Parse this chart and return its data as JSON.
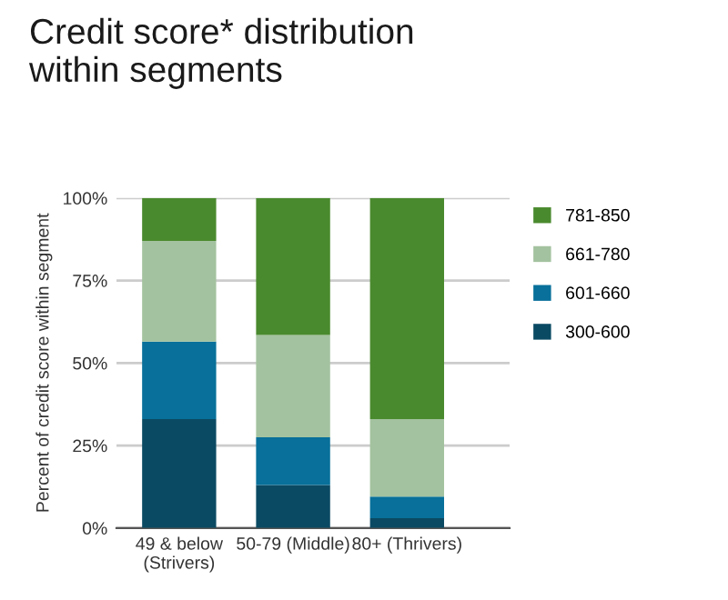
{
  "chart_data": {
    "type": "bar",
    "title": "Credit score* distribution\nwithin segments",
    "ylabel": "Percent of credit score within segment",
    "categories": [
      "49 & below\n(Strivers)",
      "50-79 (Middle)",
      "80+ (Thrivers)"
    ],
    "stacked": true,
    "series": [
      {
        "name": "300-600",
        "color": "#0b4a63",
        "values": [
          33,
          13,
          3
        ]
      },
      {
        "name": "601-660",
        "color": "#08709a",
        "values": [
          23.5,
          14.5,
          6.5
        ]
      },
      {
        "name": "661-780",
        "color": "#a3c29f",
        "values": [
          30.5,
          31,
          23.5
        ]
      },
      {
        "name": "781-850",
        "color": "#4a8a2e",
        "values": [
          13,
          41.5,
          67
        ]
      }
    ],
    "ylim": [
      0,
      100
    ],
    "yticks": [
      {
        "value": 0,
        "label": "0%"
      },
      {
        "value": 25,
        "label": "25%"
      },
      {
        "value": 50,
        "label": "50%"
      },
      {
        "value": 75,
        "label": "75%"
      },
      {
        "value": 100,
        "label": "100%"
      }
    ],
    "grid": "y",
    "legend": "right"
  }
}
